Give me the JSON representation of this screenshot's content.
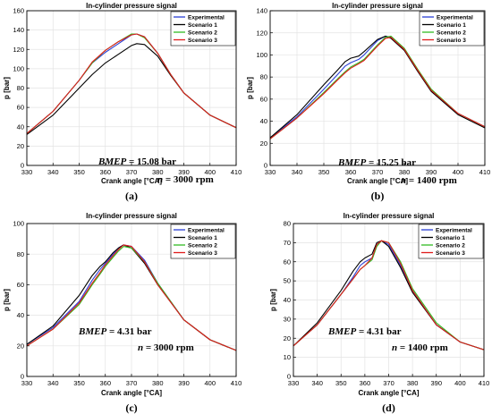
{
  "chart_data": [
    {
      "type": "line",
      "panel_label": "(a)",
      "title": "In-cylinder pressure signal",
      "xlabel": "Crank angle [°CA]",
      "ylabel": "p [bar]",
      "xlim": [
        330,
        410
      ],
      "ylim": [
        0,
        160
      ],
      "xticks": [
        330,
        340,
        350,
        360,
        370,
        380,
        390,
        400,
        410
      ],
      "yticks": [
        0,
        20,
        40,
        60,
        80,
        100,
        120,
        140,
        160
      ],
      "grid": true,
      "legend_position": "top-right",
      "annotation": {
        "bmep_label": "BMEP",
        "bmep_value": " = 15.08 bar",
        "speed_label": "n",
        "speed_value": " = 3000 rpm"
      },
      "x": [
        330,
        340,
        350,
        355,
        360,
        365,
        370,
        372,
        375,
        380,
        385,
        390,
        400,
        410
      ],
      "series": [
        {
          "name": "Experimental",
          "color": "#2a3fd6",
          "values": [
            33,
            56,
            88,
            106,
            117,
            126,
            135,
            136,
            133,
            116,
            94,
            75,
            52,
            39
          ]
        },
        {
          "name": "Scenario 1",
          "color": "#000000",
          "values": [
            32,
            52,
            80,
            94,
            106,
            115,
            124,
            126,
            125,
            113,
            93,
            75,
            52,
            39
          ]
        },
        {
          "name": "Scenario 2",
          "color": "#33bb22",
          "values": [
            33,
            56,
            88,
            106,
            119,
            128,
            136,
            136,
            132,
            116,
            94,
            75,
            52,
            39
          ]
        },
        {
          "name": "Scenario 3",
          "color": "#e01b1b",
          "values": [
            33,
            56,
            88,
            107,
            119,
            128,
            135,
            136,
            133,
            116,
            94,
            75,
            52,
            39
          ]
        }
      ]
    },
    {
      "type": "line",
      "panel_label": "(b)",
      "title": "In-cylinder pressure signal",
      "xlabel": "Crank angle [°CA]",
      "ylabel": "p [bar]",
      "xlim": [
        330,
        410
      ],
      "ylim": [
        0,
        140
      ],
      "xticks": [
        330,
        340,
        350,
        360,
        370,
        380,
        390,
        400,
        410
      ],
      "yticks": [
        0,
        20,
        40,
        60,
        80,
        100,
        120,
        140
      ],
      "grid": true,
      "legend_position": "top-right",
      "annotation": {
        "bmep_label": "BMEP",
        "bmep_value": " = 15.25 bar",
        "speed_label": "n",
        "speed_value": " = 1400 rpm"
      },
      "x": [
        330,
        340,
        350,
        355,
        358,
        360,
        363,
        365,
        370,
        373,
        375,
        380,
        385,
        390,
        400,
        410
      ],
      "series": [
        {
          "name": "Experimental",
          "color": "#2a3fd6",
          "values": [
            25,
            44,
            69,
            82,
            90,
            93,
            96,
            100,
            113,
            117,
            116,
            105,
            86,
            68,
            47,
            35
          ]
        },
        {
          "name": "Scenario 1",
          "color": "#000000",
          "values": [
            25,
            46,
            73,
            86,
            94,
            97,
            99,
            103,
            114,
            117,
            115,
            104,
            85,
            67,
            46,
            34
          ]
        },
        {
          "name": "Scenario 2",
          "color": "#33bb22",
          "values": [
            24,
            43,
            66,
            78,
            85,
            89,
            93,
            96,
            109,
            116,
            117,
            106,
            87,
            69,
            47,
            35
          ]
        },
        {
          "name": "Scenario 3",
          "color": "#e01b1b",
          "values": [
            24,
            43,
            65,
            77,
            84,
            88,
            92,
            95,
            108,
            115,
            116,
            105,
            86,
            68,
            47,
            35
          ]
        }
      ]
    },
    {
      "type": "line",
      "panel_label": "(c)",
      "title": "In-cylinder pressure signal",
      "xlabel": "Crank angle [°CA]",
      "ylabel": "p [bar]",
      "xlim": [
        330,
        410
      ],
      "ylim": [
        0,
        100
      ],
      "xticks": [
        330,
        340,
        350,
        360,
        370,
        380,
        390,
        400,
        410
      ],
      "yticks": [
        0,
        20,
        40,
        60,
        80,
        100
      ],
      "grid": true,
      "legend_position": "top-right",
      "annotation": {
        "bmep_label": "BMEP",
        "bmep_value": " = 4.31 bar",
        "speed_label": "n",
        "speed_value": " = 3000 rpm"
      },
      "x": [
        330,
        340,
        350,
        355,
        358,
        360,
        363,
        365,
        367,
        370,
        375,
        380,
        390,
        400,
        410
      ],
      "series": [
        {
          "name": "Experimental",
          "color": "#2a3fd6",
          "values": [
            21,
            32,
            49,
            63,
            70,
            74,
            80,
            84,
            86,
            85,
            76,
            61,
            37,
            24,
            17
          ]
        },
        {
          "name": "Scenario 1",
          "color": "#000000",
          "values": [
            21,
            33,
            53,
            66,
            72,
            75,
            81,
            84,
            86,
            84,
            74,
            60,
            37,
            24,
            17
          ]
        },
        {
          "name": "Scenario 2",
          "color": "#33bb22",
          "values": [
            20,
            31,
            47,
            60,
            67,
            72,
            78,
            82,
            85,
            84,
            75,
            61,
            37,
            24,
            17
          ]
        },
        {
          "name": "Scenario 3",
          "color": "#e01b1b",
          "values": [
            20,
            31,
            48,
            61,
            68,
            73,
            79,
            83,
            86,
            85,
            75,
            60,
            37,
            24,
            17
          ]
        }
      ]
    },
    {
      "type": "line",
      "panel_label": "(d)",
      "title": "In-cylinder pressure signal",
      "xlabel": "Crank angle [°CA]",
      "ylabel": "p [bar]",
      "xlim": [
        330,
        410
      ],
      "ylim": [
        0,
        80
      ],
      "xticks": [
        330,
        340,
        350,
        360,
        370,
        380,
        390,
        400,
        410
      ],
      "yticks": [
        0,
        10,
        20,
        30,
        40,
        50,
        60,
        70,
        80
      ],
      "grid": true,
      "legend_position": "top-right",
      "annotation": {
        "bmep_label": "BMEP",
        "bmep_value": " = 4.31 bar",
        "speed_label": "n",
        "speed_value": " = 1400 rpm"
      },
      "x": [
        330,
        340,
        350,
        355,
        358,
        360,
        363,
        365,
        367,
        370,
        375,
        380,
        390,
        400,
        410
      ],
      "series": [
        {
          "name": "Experimental",
          "color": "#2a3fd6",
          "values": [
            16,
            27,
            43,
            52,
            58,
            60,
            62,
            69,
            71,
            69,
            58,
            45,
            27,
            18,
            14
          ]
        },
        {
          "name": "Scenario 1",
          "color": "#000000",
          "values": [
            16,
            28,
            45,
            55,
            60,
            62,
            64,
            70,
            71,
            68,
            57,
            44,
            27,
            18,
            14
          ]
        },
        {
          "name": "Scenario 2",
          "color": "#33bb22",
          "values": [
            16,
            27,
            43,
            51,
            56,
            58,
            61,
            68,
            71,
            70,
            60,
            46,
            28,
            18,
            14
          ]
        },
        {
          "name": "Scenario 3",
          "color": "#e01b1b",
          "values": [
            16,
            27,
            43,
            51,
            56,
            58,
            62,
            69,
            71,
            70,
            59,
            45,
            27,
            18,
            14
          ]
        }
      ]
    }
  ]
}
